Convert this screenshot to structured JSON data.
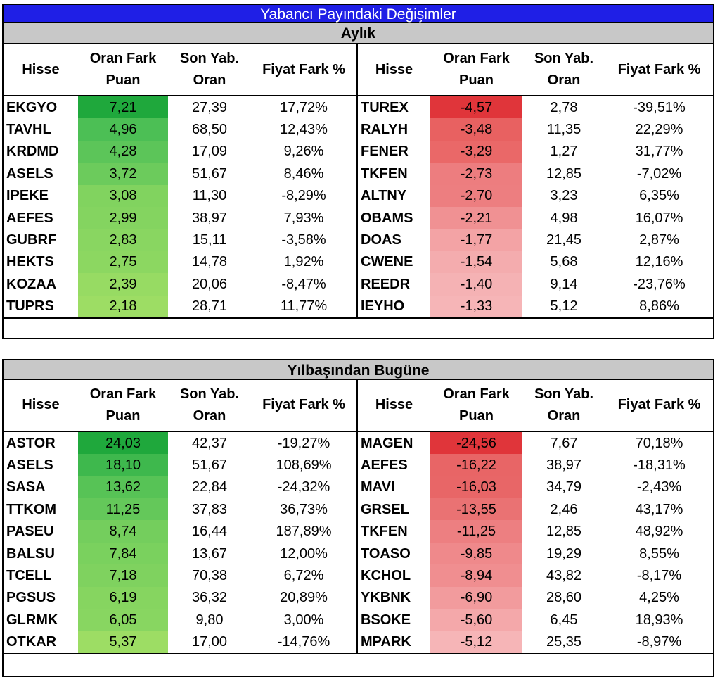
{
  "title": "Yabancı Payındaki Değişimler",
  "headers": {
    "stock": "Hisse",
    "oran_fark_1": "Oran Fark",
    "oran_fark_2": "Puan",
    "son_yab_1": "Son Yab.",
    "son_yab_2": "Oran",
    "fiyat_fark": "Fiyat Fark %"
  },
  "monthly": {
    "title": "Aylık",
    "gainers": [
      {
        "stock": "EKGYO",
        "oran": "7,21",
        "son": "27,39",
        "fiyat": "17,72%",
        "color": "#1fa83c"
      },
      {
        "stock": "TAVHL",
        "oran": "4,96",
        "son": "68,50",
        "fiyat": "12,43%",
        "color": "#4cbf55"
      },
      {
        "stock": "KRDMD",
        "oran": "4,28",
        "son": "17,09",
        "fiyat": "9,26%",
        "color": "#5cc559"
      },
      {
        "stock": "ASELS",
        "oran": "3,72",
        "son": "51,67",
        "fiyat": "8,46%",
        "color": "#6ccb5c"
      },
      {
        "stock": "IPEKE",
        "oran": "3,08",
        "son": "11,30",
        "fiyat": "-8,29%",
        "color": "#81d35f"
      },
      {
        "stock": "AEFES",
        "oran": "2,99",
        "son": "38,97",
        "fiyat": "7,93%",
        "color": "#84d460"
      },
      {
        "stock": "GUBRF",
        "oran": "2,83",
        "son": "15,11",
        "fiyat": "-3,58%",
        "color": "#89d661"
      },
      {
        "stock": "HEKTS",
        "oran": "2,75",
        "son": "14,78",
        "fiyat": "1,92%",
        "color": "#8cd761"
      },
      {
        "stock": "KOZAA",
        "oran": "2,39",
        "son": "20,06",
        "fiyat": "-8,47%",
        "color": "#97db63"
      },
      {
        "stock": "TUPRS",
        "oran": "2,18",
        "son": "28,71",
        "fiyat": "11,77%",
        "color": "#9ddd64"
      }
    ],
    "losers": [
      {
        "stock": "TUREX",
        "oran": "-4,57",
        "son": "2,78",
        "fiyat": "-39,51%",
        "color": "#e0353a"
      },
      {
        "stock": "RALYH",
        "oran": "-3,48",
        "son": "11,35",
        "fiyat": "22,29%",
        "color": "#e86161"
      },
      {
        "stock": "FENER",
        "oran": "-3,29",
        "son": "1,27",
        "fiyat": "31,77%",
        "color": "#ea6868"
      },
      {
        "stock": "TKFEN",
        "oran": "-2,73",
        "son": "12,85",
        "fiyat": "-7,02%",
        "color": "#ed7d7f"
      },
      {
        "stock": "ALTNY",
        "oran": "-2,70",
        "son": "3,23",
        "fiyat": "6,35%",
        "color": "#ed7e80"
      },
      {
        "stock": "OBAMS",
        "oran": "-2,21",
        "son": "4,98",
        "fiyat": "16,07%",
        "color": "#f09193"
      },
      {
        "stock": "DOAS",
        "oran": "-1,77",
        "son": "21,45",
        "fiyat": "2,87%",
        "color": "#f3a3a5"
      },
      {
        "stock": "CWENE",
        "oran": "-1,54",
        "son": "5,68",
        "fiyat": "12,16%",
        "color": "#f4acae"
      },
      {
        "stock": "REEDR",
        "oran": "-1,40",
        "son": "9,14",
        "fiyat": "-23,76%",
        "color": "#f5b2b4"
      },
      {
        "stock": "IEYHO",
        "oran": "-1,33",
        "son": "5,12",
        "fiyat": "8,86%",
        "color": "#f6b5b7"
      }
    ]
  },
  "ytd": {
    "title": "Yılbaşından Bugüne",
    "gainers": [
      {
        "stock": "ASTOR",
        "oran": "24,03",
        "son": "42,37",
        "fiyat": "-19,27%",
        "color": "#1fa83c"
      },
      {
        "stock": "ASELS",
        "oran": "18,10",
        "son": "51,67",
        "fiyat": "108,69%",
        "color": "#3eb84d"
      },
      {
        "stock": "SASA",
        "oran": "13,62",
        "son": "22,84",
        "fiyat": "-24,32%",
        "color": "#57c356"
      },
      {
        "stock": "TTKOM",
        "oran": "11,25",
        "son": "37,83",
        "fiyat": "36,73%",
        "color": "#64c85a"
      },
      {
        "stock": "PASEU",
        "oran": "8,74",
        "son": "16,44",
        "fiyat": "187,89%",
        "color": "#74ce5d"
      },
      {
        "stock": "BALSU",
        "oran": "7,84",
        "son": "13,67",
        "fiyat": "12,00%",
        "color": "#7ad15e"
      },
      {
        "stock": "TCELL",
        "oran": "7,18",
        "son": "70,38",
        "fiyat": "6,72%",
        "color": "#7fd25f"
      },
      {
        "stock": "PGSUS",
        "oran": "6,19",
        "son": "36,32",
        "fiyat": "20,89%",
        "color": "#86d560"
      },
      {
        "stock": "GLRMK",
        "oran": "6,05",
        "son": "9,80",
        "fiyat": "3,00%",
        "color": "#88d661"
      },
      {
        "stock": "OTKAR",
        "oran": "5,37",
        "son": "17,00",
        "fiyat": "-14,76%",
        "color": "#9ddd64"
      }
    ],
    "losers": [
      {
        "stock": "MAGEN",
        "oran": "-24,56",
        "son": "7,67",
        "fiyat": "70,18%",
        "color": "#e0353a"
      },
      {
        "stock": "AEFES",
        "oran": "-16,22",
        "son": "38,97",
        "fiyat": "-18,31%",
        "color": "#e86566"
      },
      {
        "stock": "MAVI",
        "oran": "-16,03",
        "son": "34,79",
        "fiyat": "-2,43%",
        "color": "#e86667"
      },
      {
        "stock": "GRSEL",
        "oran": "-13,55",
        "son": "2,46",
        "fiyat": "43,17%",
        "color": "#ea7273"
      },
      {
        "stock": "TKFEN",
        "oran": "-11,25",
        "son": "12,85",
        "fiyat": "48,92%",
        "color": "#ed7f81"
      },
      {
        "stock": "TOASO",
        "oran": "-9,85",
        "son": "19,29",
        "fiyat": "8,55%",
        "color": "#ef898b"
      },
      {
        "stock": "KCHOL",
        "oran": "-8,94",
        "son": "43,82",
        "fiyat": "-8,17%",
        "color": "#f08e90"
      },
      {
        "stock": "YKBNK",
        "oran": "-6,90",
        "son": "28,60",
        "fiyat": "4,25%",
        "color": "#f29b9d"
      },
      {
        "stock": "BSOKE",
        "oran": "-5,60",
        "son": "6,45",
        "fiyat": "18,93%",
        "color": "#f4a8aa"
      },
      {
        "stock": "MPARK",
        "oran": "-5,12",
        "son": "25,35",
        "fiyat": "-8,97%",
        "color": "#f6b5b7"
      }
    ]
  }
}
